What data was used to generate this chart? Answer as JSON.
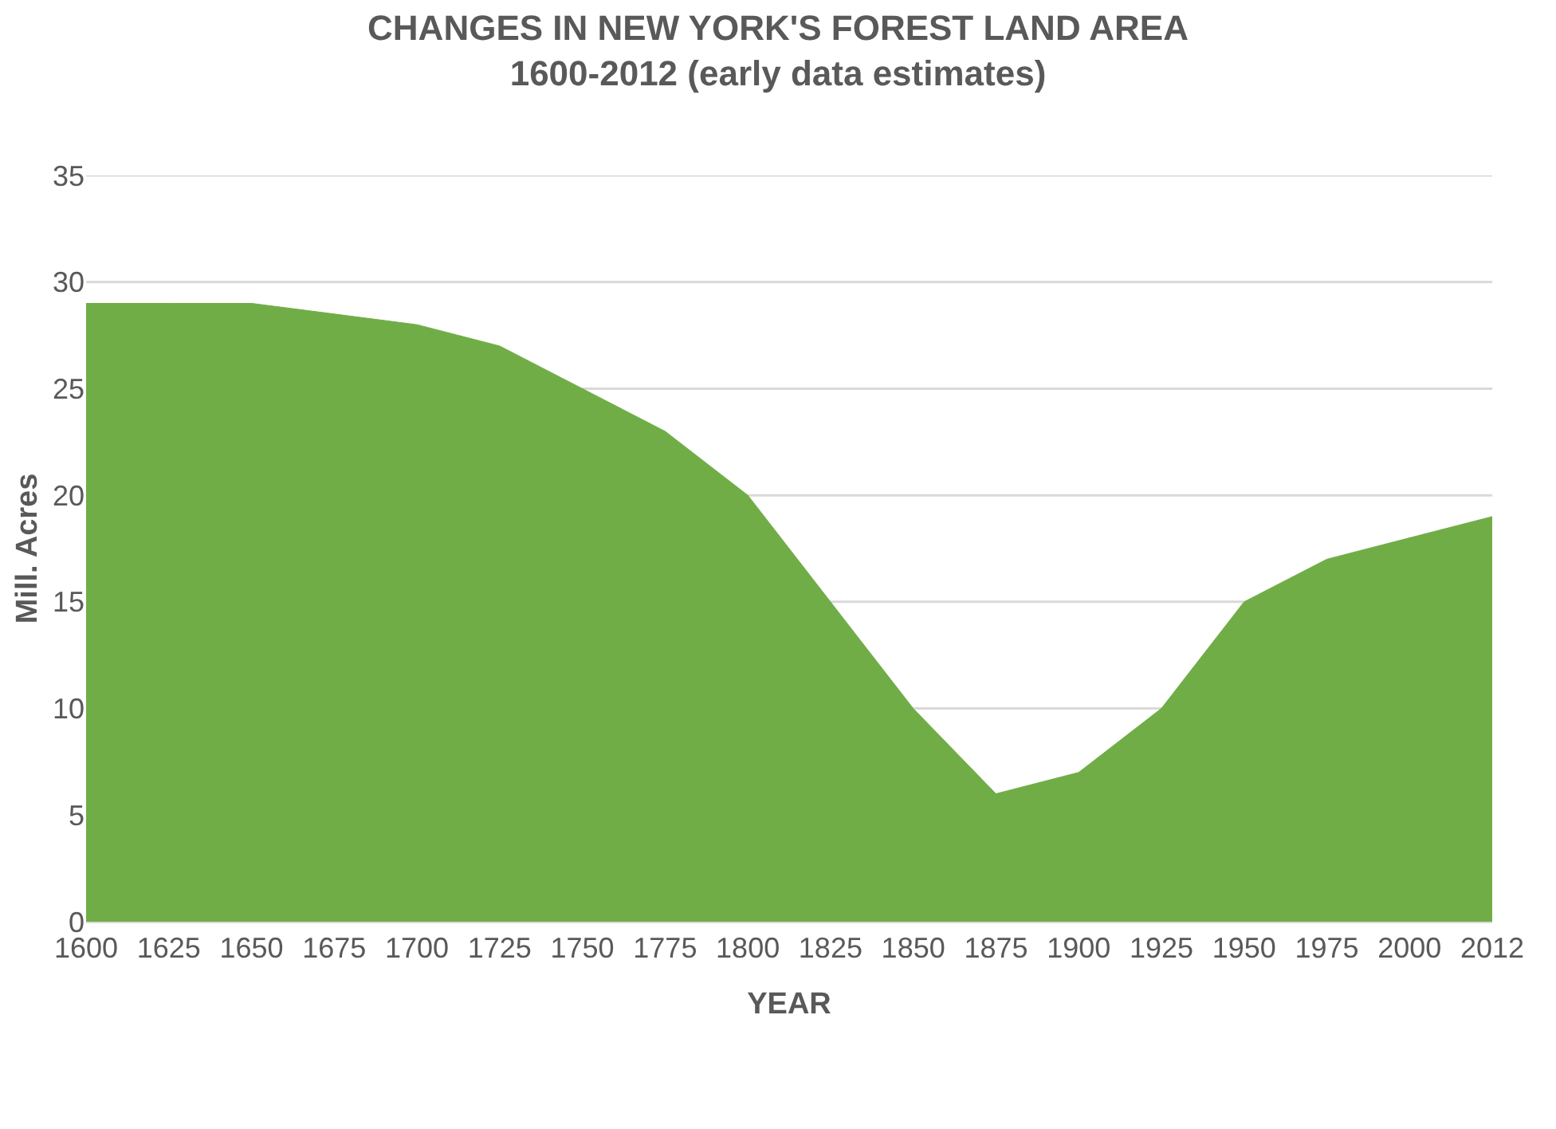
{
  "chart_data": {
    "type": "area",
    "title": "CHANGES IN NEW YORK'S FOREST LAND AREA\n1600-2012 (early data estimates)",
    "xlabel": "YEAR",
    "ylabel": "Mill. Acres",
    "categories": [
      "1600",
      "1625",
      "1650",
      "1675",
      "1700",
      "1725",
      "1750",
      "1775",
      "1800",
      "1825",
      "1850",
      "1875",
      "1900",
      "1925",
      "1950",
      "1975",
      "2000",
      "2012"
    ],
    "series": [
      {
        "color": "#70ad47",
        "values": [
          29,
          29,
          29,
          28.5,
          28,
          27,
          25,
          23,
          20,
          15,
          10,
          6,
          7,
          10,
          15,
          17,
          18,
          19
        ]
      }
    ],
    "ylim": [
      0,
      35
    ],
    "yticks": [
      0,
      5,
      10,
      15,
      20,
      25,
      30,
      35
    ],
    "grid": "y"
  }
}
